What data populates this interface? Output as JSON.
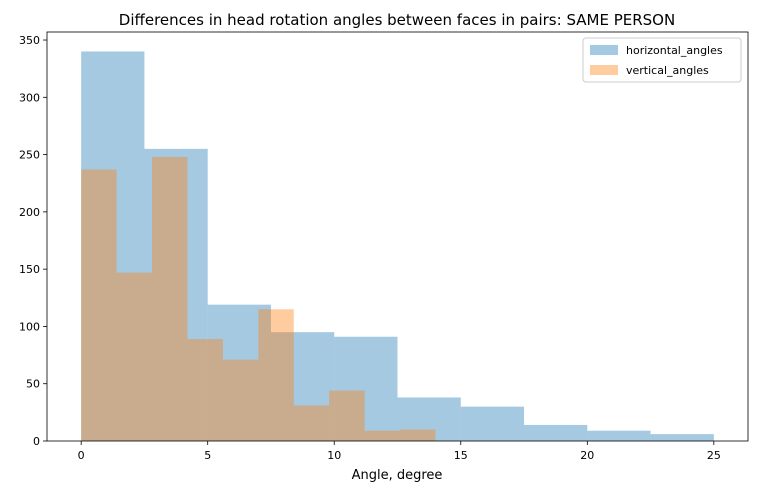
{
  "chart_data": {
    "type": "bar",
    "title": "Differences in head rotation angles between faces in pairs: SAME PERSON",
    "xlabel": "Angle, degree",
    "ylabel": "",
    "xlim": [
      -1.35,
      26.35
    ],
    "ylim": [
      0,
      357
    ],
    "xticks": [
      0,
      5,
      10,
      15,
      20,
      25
    ],
    "yticks": [
      0,
      50,
      100,
      150,
      200,
      250,
      300,
      350
    ],
    "grid": false,
    "legend_position": "top-right",
    "series": [
      {
        "name": "horizontal_angles",
        "color": "#1f77b4",
        "opacity": 0.4,
        "bin_edges": [
          0,
          2.5,
          5,
          7.5,
          10,
          12.5,
          15,
          17.5,
          20,
          22.5,
          25
        ],
        "values": [
          340,
          255,
          119,
          95,
          91,
          38,
          30,
          14,
          9,
          6
        ]
      },
      {
        "name": "vertical_angles",
        "color": "#ff7f0e",
        "opacity": 0.4,
        "bin_edges": [
          0,
          1.4,
          2.8,
          4.2,
          5.6,
          7.0,
          8.4,
          9.8,
          11.2,
          12.6,
          14.0
        ],
        "values": [
          237,
          147,
          248,
          89,
          71,
          115,
          31,
          44,
          9,
          10
        ]
      }
    ]
  }
}
